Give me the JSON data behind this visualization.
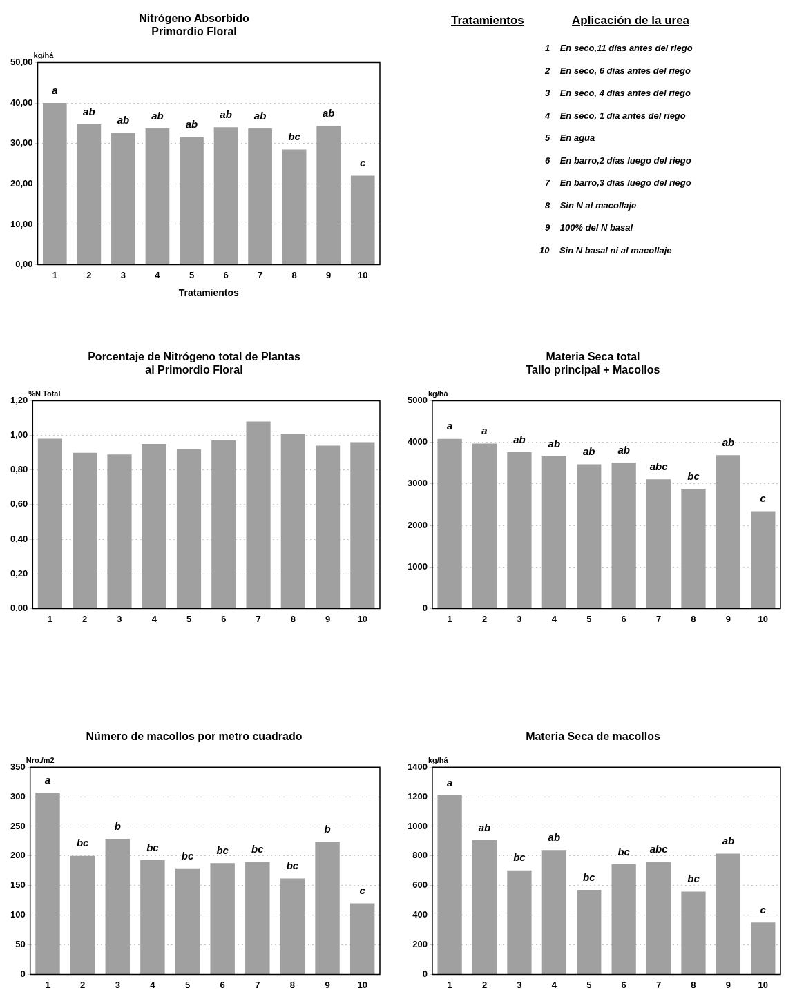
{
  "chart_data": [
    {
      "type": "bar",
      "title": "Nitrógeno Absorbido\nPrimordio Floral",
      "xlabel": "Tratamientos",
      "ylabel": "kg/há",
      "categories": [
        "1",
        "2",
        "3",
        "4",
        "5",
        "6",
        "7",
        "8",
        "9",
        "10"
      ],
      "values": [
        40.0,
        34.7,
        32.6,
        33.7,
        31.6,
        34.0,
        33.7,
        28.5,
        34.3,
        22.0
      ],
      "color": "#a0a0a0",
      "value_labels": [
        "a",
        "ab",
        "ab",
        "ab",
        "ab",
        "ab",
        "ab",
        "bc",
        "ab",
        "c"
      ],
      "ylim": [
        0,
        50
      ],
      "yticks": [
        {
          "value": 0,
          "label": "0,00"
        },
        {
          "value": 10,
          "label": "10,00"
        },
        {
          "value": 20,
          "label": "20,00"
        },
        {
          "value": 30,
          "label": "30,00"
        },
        {
          "value": 40,
          "label": "40,00"
        },
        {
          "value": 50,
          "label": "50,00"
        }
      ],
      "grid": "y"
    },
    {
      "type": "other",
      "title": "Tratamientos",
      "subtitle": "Aplicación de la urea",
      "annotations": [
        "1    En seco,11 días antes del riego",
        "2    En seco, 6 días antes del riego",
        "3    En seco, 4 días antes del riego",
        "4    En seco, 1 día antes del riego",
        "5    En agua",
        "6    En barro,2 días luego del riego",
        "7    En barro,3 días luego del riego",
        "8    Sin N al macollaje",
        "9    100% del N basal",
        "10    Sin N basal ni al macollaje"
      ]
    },
    {
      "type": "bar",
      "title": "Porcentaje de Nitrógeno total de Plantas\nal Primordio Floral",
      "ylabel": "%N Total",
      "categories": [
        "1",
        "2",
        "3",
        "4",
        "5",
        "6",
        "7",
        "8",
        "9",
        "10"
      ],
      "values": [
        0.98,
        0.9,
        0.89,
        0.95,
        0.92,
        0.97,
        1.08,
        1.01,
        0.94,
        0.96
      ],
      "color": "#a0a0a0",
      "ylim": [
        0,
        1.2
      ],
      "yticks": [
        {
          "value": 0,
          "label": "0,00"
        },
        {
          "value": 0.2,
          "label": "0,20"
        },
        {
          "value": 0.4,
          "label": "0,40"
        },
        {
          "value": 0.6,
          "label": "0,60"
        },
        {
          "value": 0.8,
          "label": "0,80"
        },
        {
          "value": 1.0,
          "label": "1,00"
        },
        {
          "value": 1.2,
          "label": "1,20"
        }
      ],
      "grid": "y"
    },
    {
      "type": "bar",
      "title": "Materia Seca total\nTallo principal + Macollos",
      "ylabel": "kg/há",
      "categories": [
        "1",
        "2",
        "3",
        "4",
        "5",
        "6",
        "7",
        "8",
        "9",
        "10"
      ],
      "values": [
        4080,
        3970,
        3760,
        3660,
        3470,
        3510,
        3110,
        2880,
        3690,
        2340
      ],
      "color": "#a0a0a0",
      "value_labels": [
        "a",
        "a",
        "ab",
        "ab",
        "ab",
        "ab",
        "abc",
        "bc",
        "ab",
        "c"
      ],
      "ylim": [
        0,
        5000
      ],
      "yticks": [
        0,
        1000,
        2000,
        3000,
        4000,
        5000
      ],
      "grid": "y"
    },
    {
      "type": "bar",
      "title": "Número de macollos por metro cuadrado",
      "ylabel": "Nro./m2",
      "categories": [
        "1",
        "2",
        "3",
        "4",
        "5",
        "6",
        "7",
        "8",
        "9",
        "10"
      ],
      "values": [
        307,
        200,
        229,
        193,
        179,
        188,
        190,
        162,
        224,
        120
      ],
      "color": "#a0a0a0",
      "value_labels": [
        "a",
        "bc",
        "b",
        "bc",
        "bc",
        "bc",
        "bc",
        "bc",
        "b",
        "c"
      ],
      "ylim": [
        0,
        350
      ],
      "yticks": [
        0,
        50,
        100,
        150,
        200,
        250,
        300,
        350
      ],
      "grid": "y"
    },
    {
      "type": "bar",
      "title": "Materia Seca de macollos",
      "ylabel": "kg/há",
      "categories": [
        "1",
        "2",
        "3",
        "4",
        "5",
        "6",
        "7",
        "8",
        "9",
        "10"
      ],
      "values": [
        1210,
        907,
        703,
        840,
        571,
        744,
        760,
        559,
        816,
        351
      ],
      "color": "#a0a0a0",
      "value_labels": [
        "a",
        "ab",
        "bc",
        "ab",
        "bc",
        "bc",
        "abc",
        "bc",
        "ab",
        "c"
      ],
      "ylim": [
        0,
        1400
      ],
      "yticks": [
        0,
        200,
        400,
        600,
        800,
        1000,
        1200,
        1400
      ],
      "grid": "y"
    }
  ]
}
